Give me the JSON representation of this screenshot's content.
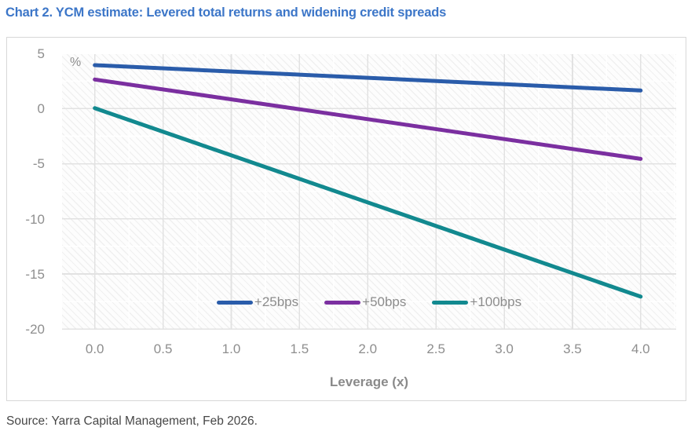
{
  "page": {
    "source_note": "Source: Yarra Capital Management, Feb 2026."
  },
  "chart_data": {
    "type": "line",
    "title": "Chart 2. YCM estimate: Levered total returns and widening credit spreads",
    "title_color": "#3c76c8",
    "xlabel": "Leverage (x)",
    "ylabel": "%",
    "x_ticks": [
      "0.0",
      "0.5",
      "1.0",
      "1.5",
      "2.0",
      "2.5",
      "3.0",
      "3.5",
      "4.0"
    ],
    "y_ticks": [
      "5",
      "0",
      "-5",
      "-10",
      "-15",
      "-20"
    ],
    "xlim": [
      -0.24,
      4.26
    ],
    "ylim": [
      -20,
      5
    ],
    "grid": "on (hatched plot background with light gridlines every 0.25x and 2.5%)",
    "legend_position": "bottom-center inside plot area",
    "series": [
      {
        "name": "+25bps",
        "color": "#2a5caa",
        "x": [
          0,
          4
        ],
        "values": [
          4.0,
          1.7
        ]
      },
      {
        "name": "+50bps",
        "color": "#7b2fa0",
        "x": [
          0,
          4
        ],
        "values": [
          2.7,
          -4.5
        ]
      },
      {
        "name": "+100bps",
        "color": "#12898f",
        "x": [
          0,
          4
        ],
        "values": [
          0.1,
          -17.0
        ]
      }
    ]
  }
}
